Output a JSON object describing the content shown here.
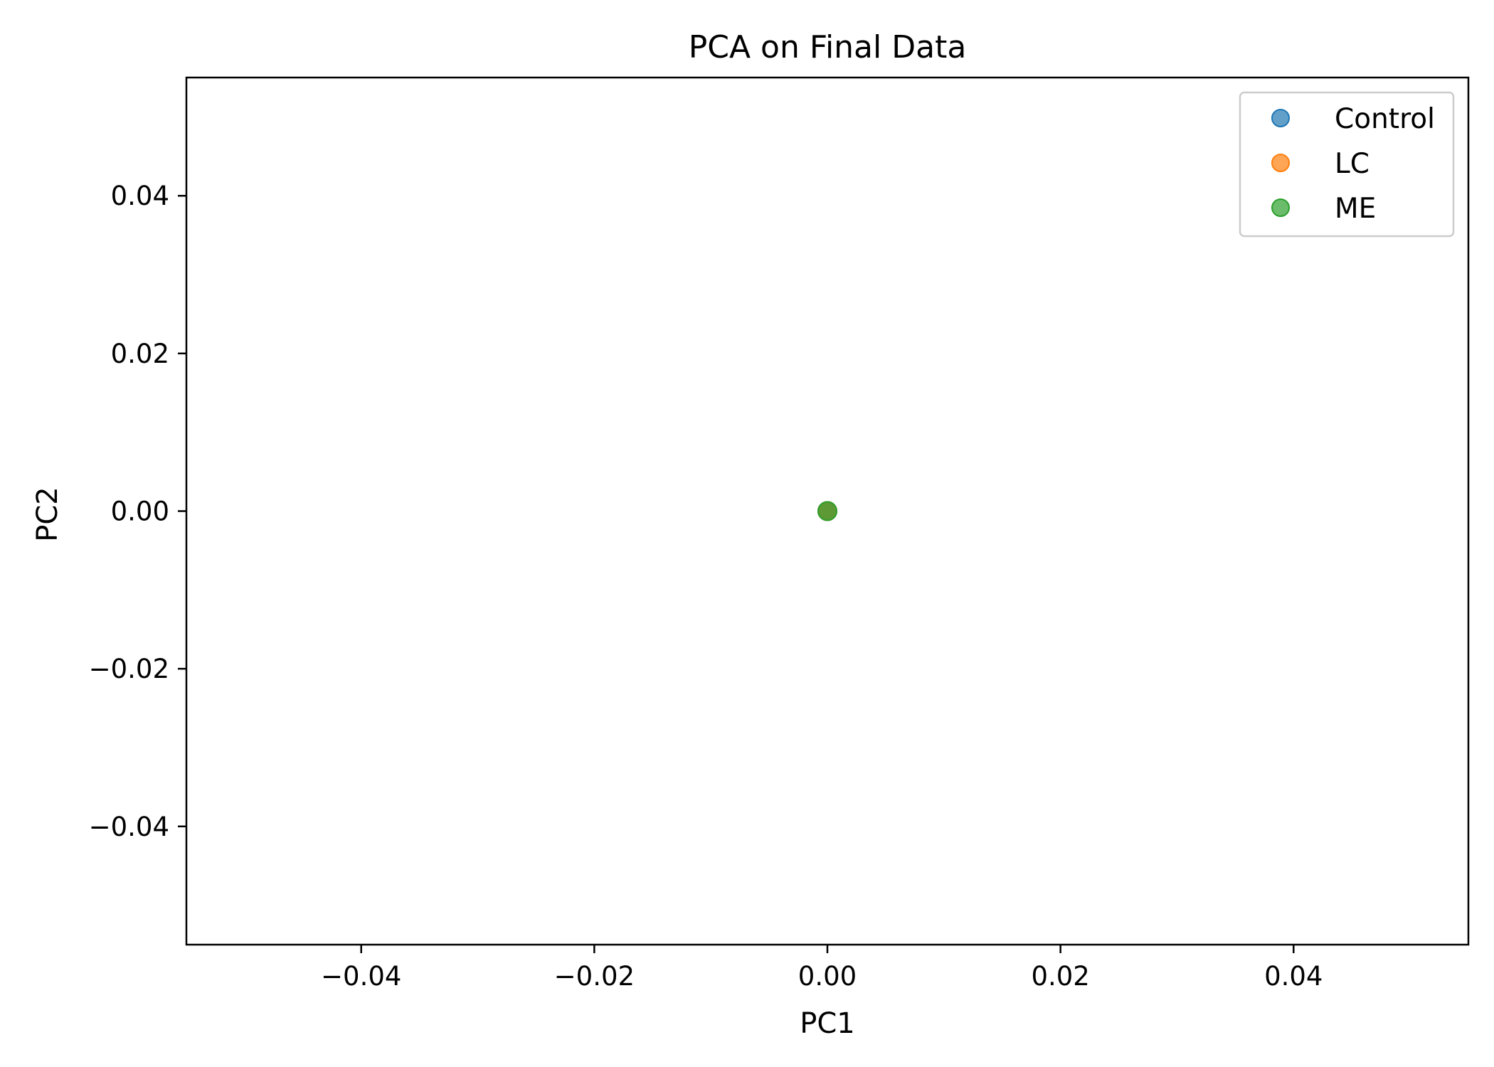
{
  "chart_data": {
    "type": "scatter",
    "title": "PCA on Final Data",
    "xlabel": "PC1",
    "ylabel": "PC2",
    "xlim": [
      -0.055,
      0.055
    ],
    "ylim": [
      -0.055,
      0.055
    ],
    "xticks": [
      -0.04,
      -0.02,
      0.0,
      0.02,
      0.04
    ],
    "yticks": [
      -0.04,
      -0.02,
      0.0,
      0.02,
      0.04
    ],
    "xtick_labels": [
      "−0.04",
      "−0.02",
      "0.00",
      "0.02",
      "0.04"
    ],
    "ytick_labels": [
      "−0.04",
      "−0.02",
      "0.00",
      "0.02",
      "0.04"
    ],
    "grid": false,
    "legend_position": "top-right",
    "series": [
      {
        "name": "Control",
        "color": "#1f77b4",
        "points": [
          [
            0.0,
            0.0
          ]
        ]
      },
      {
        "name": "LC",
        "color": "#ff7f0e",
        "points": [
          [
            0.0,
            0.0
          ]
        ]
      },
      {
        "name": "ME",
        "color": "#2ca02c",
        "points": [
          [
            0.0,
            0.0
          ]
        ]
      }
    ]
  }
}
